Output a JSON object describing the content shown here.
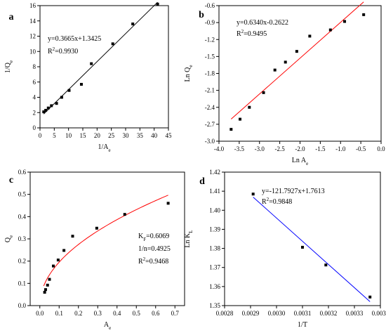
{
  "chart_data": [
    {
      "type": "scatter",
      "panel_label": "a",
      "xlabel": "1/A",
      "xlabel_sub": "e",
      "ylabel": "1/Q",
      "ylabel_sub": "e",
      "xlim": [
        0,
        45
      ],
      "ylim": [
        0,
        16
      ],
      "xticks": [
        0,
        5,
        10,
        15,
        20,
        25,
        30,
        35,
        40,
        45
      ],
      "yticks": [
        0,
        2,
        4,
        6,
        8,
        10,
        12,
        14,
        16
      ],
      "series": [
        {
          "x": [
            1.3,
            2.0,
            2.9,
            4.0,
            5.8,
            7.6,
            10.2,
            14.5,
            18.0,
            25.5,
            32.5,
            41.2
          ],
          "y": [
            2.1,
            2.3,
            2.6,
            2.9,
            3.2,
            4.0,
            4.9,
            5.7,
            8.4,
            11.0,
            13.6,
            16.2
          ]
        }
      ],
      "fit": {
        "slope": 0.3665,
        "intercept": 1.3425,
        "x_range": [
          1.3,
          41.2
        ],
        "color": "#000000"
      },
      "annotations": [
        "y=0.3665x+1.3425",
        "R2=0.9930"
      ]
    },
    {
      "type": "scatter",
      "panel_label": "b",
      "xlabel": "Ln A",
      "xlabel_sub": "e",
      "ylabel": "Ln Q",
      "ylabel_sub": "e",
      "xlim": [
        -4.0,
        0.0
      ],
      "ylim": [
        -3.0,
        -0.6
      ],
      "xticks": [
        -4.0,
        -3.5,
        -3.0,
        -2.5,
        -2.0,
        -1.5,
        -1.0,
        -0.5,
        0.0
      ],
      "yticks": [
        -3.0,
        -2.7,
        -2.4,
        -2.1,
        -1.8,
        -1.5,
        -1.2,
        -0.9,
        -0.6
      ],
      "series": [
        {
          "x": [
            -3.7,
            -3.48,
            -3.25,
            -2.9,
            -2.62,
            -2.36,
            -2.08,
            -1.76,
            -1.25,
            -0.9,
            -0.43
          ],
          "y": [
            -2.79,
            -2.61,
            -2.4,
            -2.14,
            -1.74,
            -1.6,
            -1.41,
            -1.14,
            -1.03,
            -0.88,
            -0.76
          ]
        }
      ],
      "fit": {
        "slope": 0.634,
        "intercept": -0.2622,
        "x_range": [
          -3.7,
          -0.43
        ],
        "color": "#ff0000"
      },
      "annotations": [
        "y=0.6340x-0.2622",
        "R2=0.9495"
      ]
    },
    {
      "type": "scatter",
      "panel_label": "c",
      "xlabel": "A",
      "xlabel_sub": "e",
      "ylabel": "Q",
      "ylabel_sub": "e",
      "xlim": [
        -0.05,
        0.75
      ],
      "ylim": [
        0.0,
        0.6
      ],
      "xticks": [
        0.0,
        0.1,
        0.2,
        0.3,
        0.4,
        0.5,
        0.6,
        0.7
      ],
      "yticks": [
        0.0,
        0.1,
        0.2,
        0.3,
        0.4,
        0.5,
        0.6
      ],
      "series": [
        {
          "x": [
            0.025,
            0.03,
            0.04,
            0.05,
            0.07,
            0.095,
            0.125,
            0.17,
            0.295,
            0.44,
            0.665
          ],
          "y": [
            0.06,
            0.072,
            0.092,
            0.118,
            0.178,
            0.205,
            0.248,
            0.312,
            0.348,
            0.41,
            0.46
          ]
        }
      ],
      "fit": {
        "model": "freundlich",
        "kf": 0.6069,
        "n_inv": 0.4925,
        "x_range": [
          0.02,
          0.665
        ],
        "color": "#ff0000"
      },
      "annotations": [
        "KF=0.6069",
        "1/n=0.4925",
        "R2=0.9468"
      ]
    },
    {
      "type": "scatter",
      "panel_label": "d",
      "xlabel": "1/T",
      "xlabel_sub": "",
      "ylabel": "Ln K",
      "ylabel_sub": "L",
      "xlim": [
        0.0028,
        0.0034
      ],
      "ylim": [
        1.35,
        1.42
      ],
      "xticks": [
        "0.0028",
        "0.0029",
        "0.0030",
        "0.0031",
        "0.0032",
        "0.0033",
        "0.0034"
      ],
      "yticks": [
        "1.35",
        "1.36",
        "1.37",
        "1.38",
        "1.39",
        "1.40",
        "1.41",
        "1.42"
      ],
      "series": [
        {
          "x": [
            0.00291,
            0.0031,
            0.00319,
            0.00336
          ],
          "y": [
            1.4085,
            1.3806,
            1.3713,
            1.3545
          ]
        }
      ],
      "fit": {
        "slope": -121.7927,
        "intercept": 1.7613,
        "x_range": [
          0.00291,
          0.00336
        ],
        "color": "#0000ff"
      },
      "annotations": [
        "y=-121.7927x+1.7613",
        "R2=0.9848"
      ]
    }
  ]
}
